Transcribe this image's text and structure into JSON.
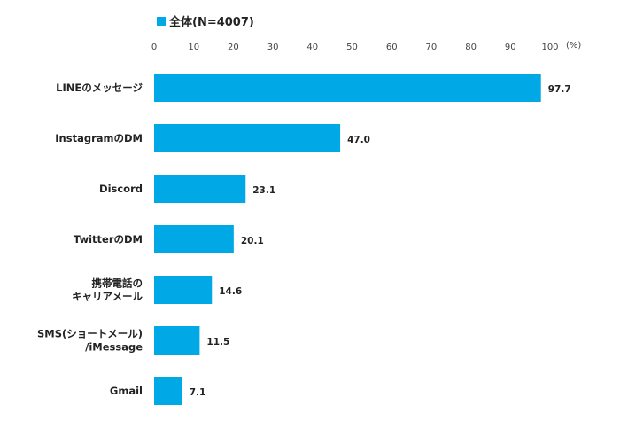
{
  "chart_data": {
    "type": "bar",
    "orientation": "horizontal",
    "legend": [
      {
        "name": "全体(N=4007)",
        "color": "#00a8e6"
      }
    ],
    "unit": "(%)",
    "xlim": [
      0,
      100
    ],
    "x_ticks": [
      0,
      10,
      20,
      30,
      40,
      50,
      60,
      70,
      80,
      90,
      100
    ],
    "grid": false,
    "legend_position": "top-left",
    "categories": [
      [
        "LINEのメッセージ"
      ],
      [
        "InstagramのDM"
      ],
      [
        "Discord"
      ],
      [
        "TwitterのDM"
      ],
      [
        "携帯電話の",
        "キャリアメール"
      ],
      [
        "SMS(ショートメール)",
        "/iMessage"
      ],
      [
        "Gmail"
      ]
    ],
    "series": [
      {
        "name": "全体(N=4007)",
        "color": "#00a8e6",
        "values": [
          97.7,
          47.0,
          23.1,
          20.1,
          14.6,
          11.5,
          7.1
        ],
        "labels": [
          "97.7",
          "47.0",
          "23.1",
          "20.1",
          "14.6",
          "11.5",
          "7.1"
        ]
      }
    ]
  }
}
